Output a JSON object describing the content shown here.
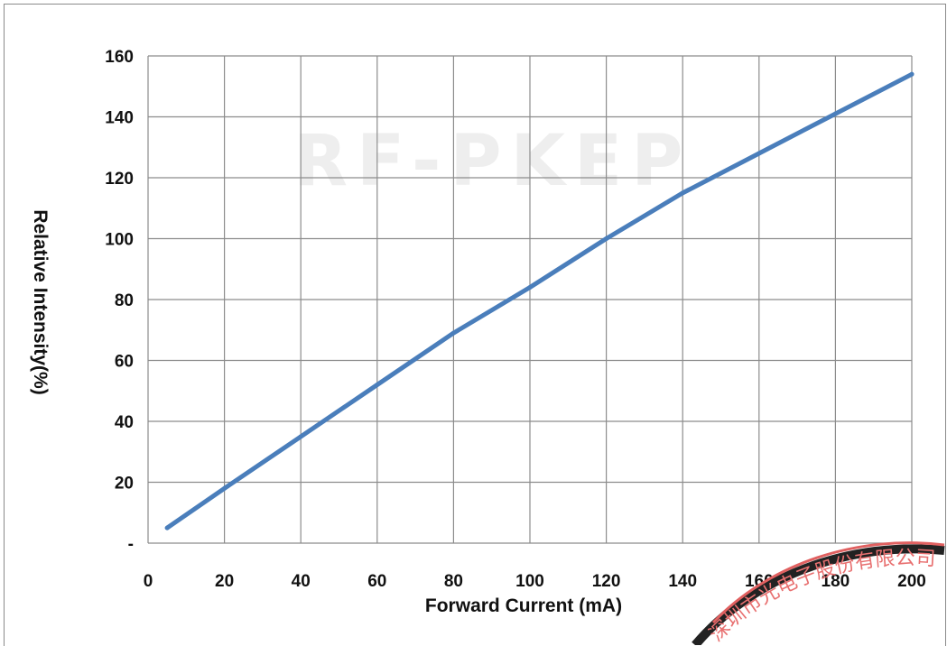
{
  "chart_data": {
    "type": "line",
    "xlabel": "Forward Current (mA)",
    "ylabel": "Relative Intensity(%)",
    "xlim": [
      0,
      200
    ],
    "ylim": [
      0,
      160
    ],
    "x_ticks": [
      "0",
      "20",
      "40",
      "60",
      "80",
      "100",
      "120",
      "140",
      "160",
      "180",
      "200"
    ],
    "y_ticks": [
      "-",
      "20",
      "40",
      "60",
      "80",
      "100",
      "120",
      "140",
      "160"
    ],
    "grid": true,
    "series": [
      {
        "color": "#4a7ebb",
        "x": [
          5,
          20,
          40,
          60,
          80,
          100,
          120,
          140,
          160,
          180,
          200
        ],
        "y": [
          5,
          18,
          35,
          52,
          69,
          84,
          100,
          115,
          128,
          141,
          154
        ]
      }
    ]
  },
  "watermark": {
    "text": "RF-PKEP"
  },
  "stamp": {
    "text": "深圳市光电子股份有限公司"
  },
  "colors": {
    "grid": "#8c8c8c",
    "line": "#4a7ebb",
    "stamp": "#e06060"
  }
}
